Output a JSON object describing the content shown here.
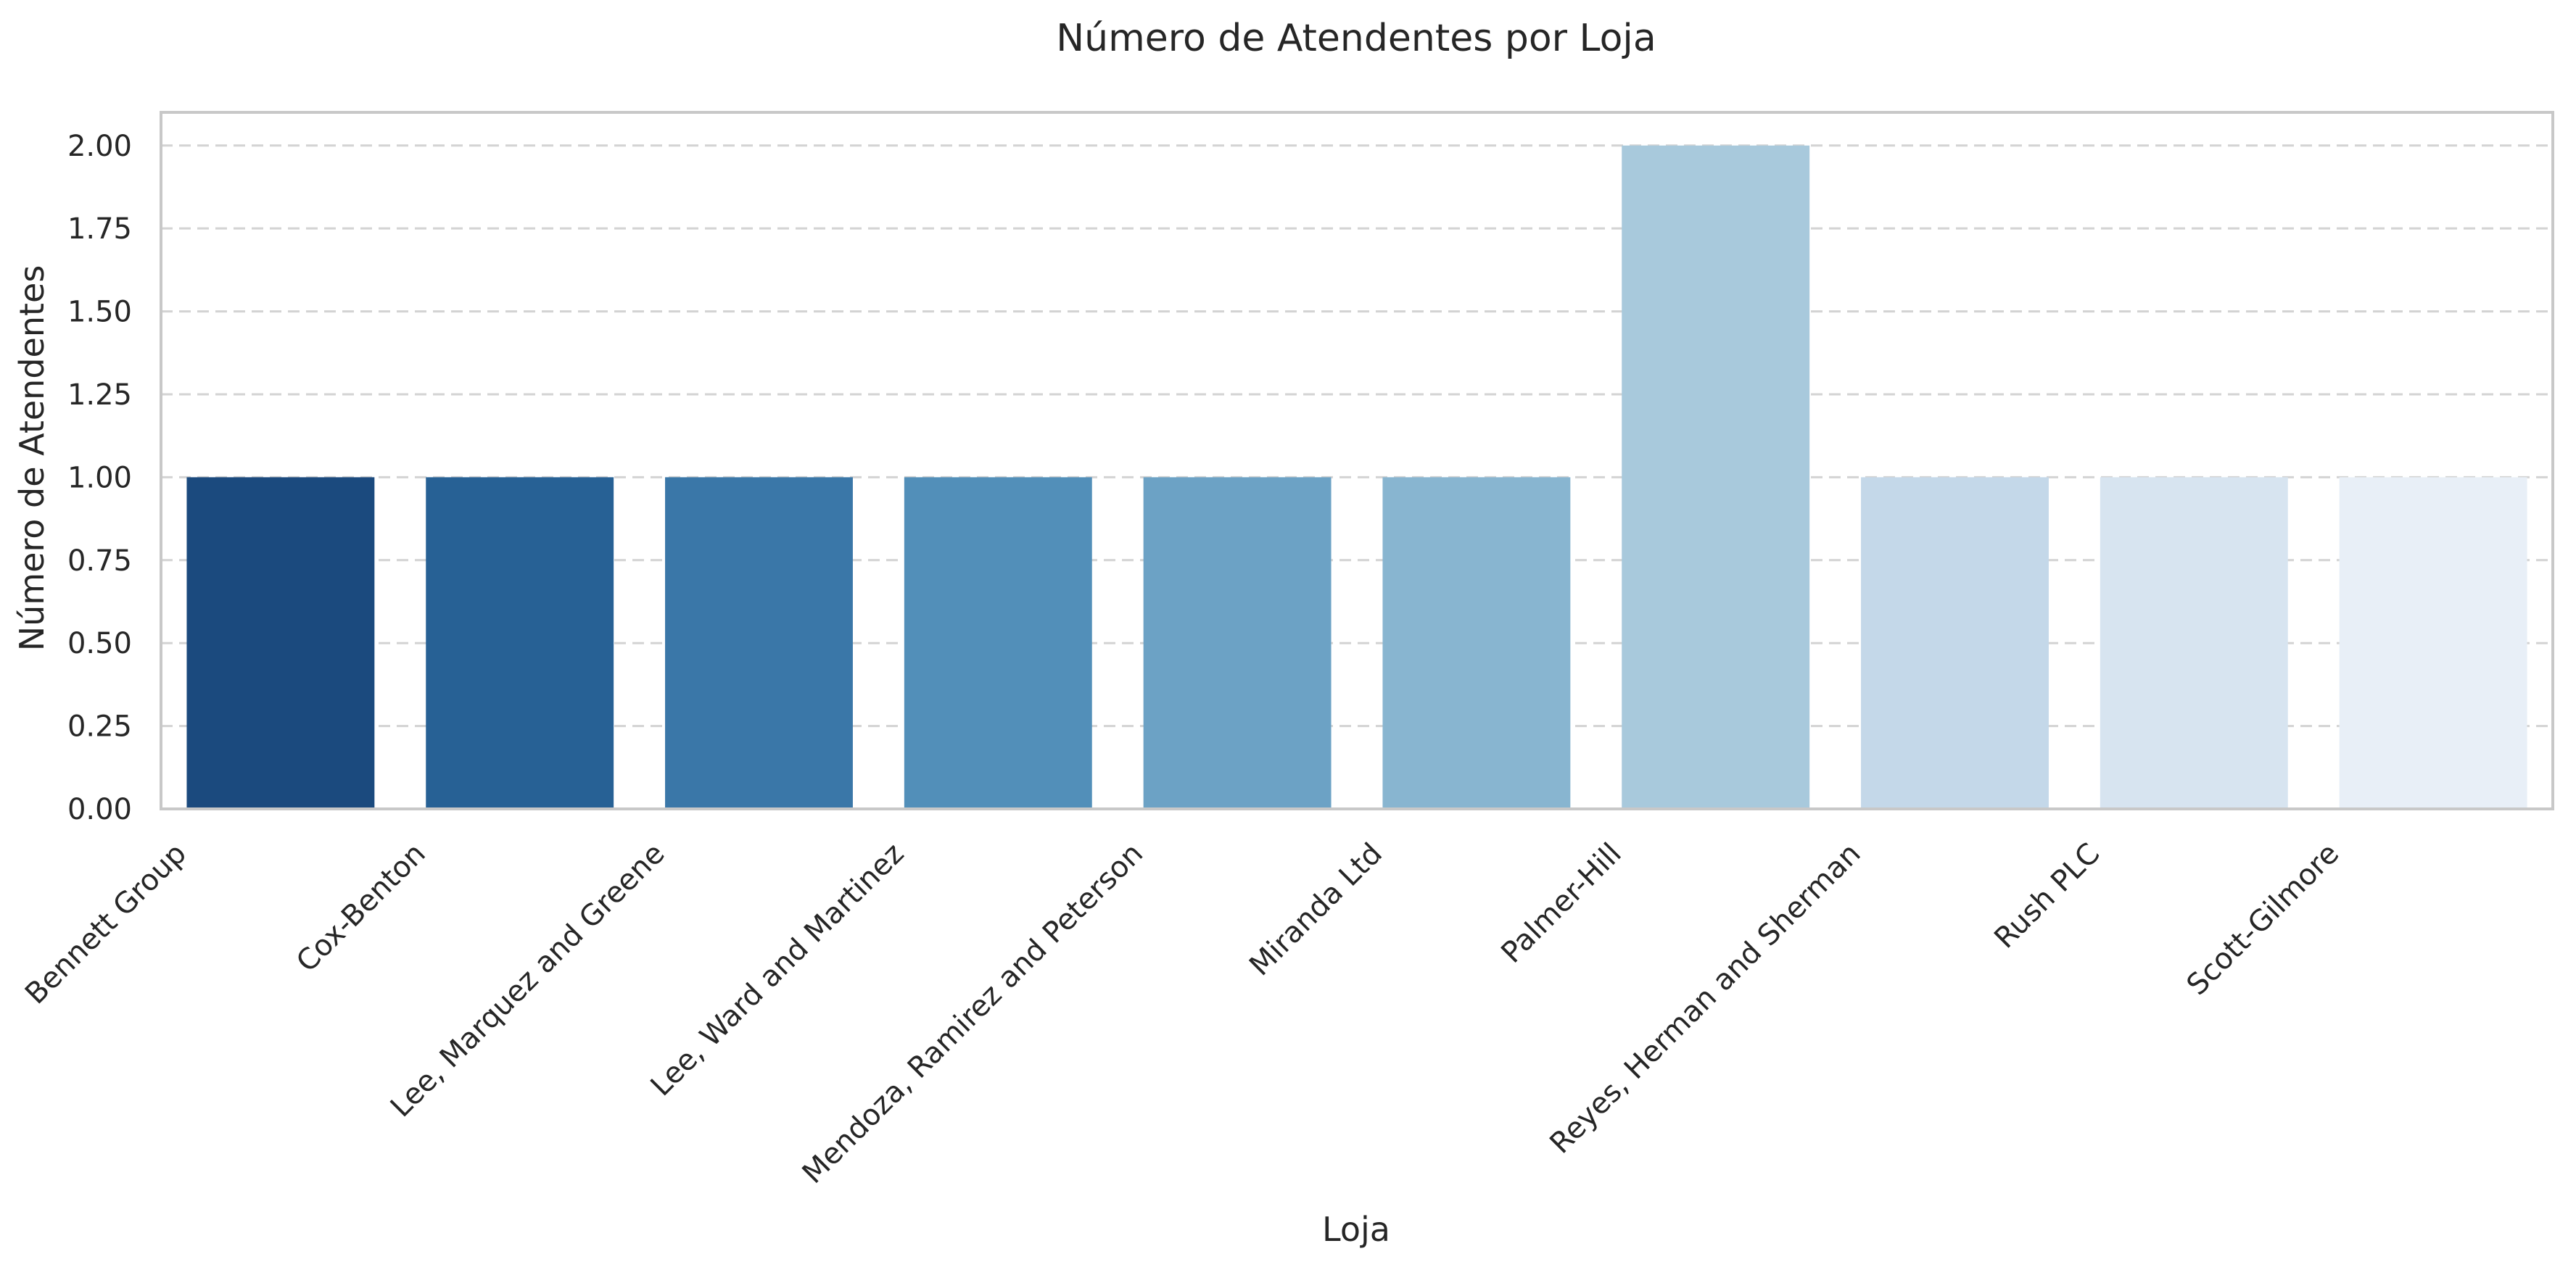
{
  "chart_data": {
    "type": "bar",
    "title": "Número de Atendentes por Loja",
    "xlabel": "Loja",
    "ylabel": "Número de Atendentes",
    "categories": [
      "Bennett Group",
      "Cox-Benton",
      "Lee, Marquez and Greene",
      "Lee, Ward and Martinez",
      "Mendoza, Ramirez and Peterson",
      "Miranda Ltd",
      "Palmer-Hill",
      "Reyes, Herman and Sherman",
      "Rush PLC",
      "Scott-Gilmore"
    ],
    "values": [
      1,
      1,
      1,
      1,
      1,
      1,
      2,
      1,
      1,
      1
    ],
    "colors": [
      "#1b4a7e",
      "#276195",
      "#3a77a8",
      "#528fb9",
      "#6ca2c5",
      "#88b5d0",
      "#a8c9dc",
      "#c4d8e9",
      "#d7e4f0",
      "#e8eff7"
    ],
    "ylim": [
      0,
      2.1
    ],
    "yticks": [
      "0.00",
      "0.25",
      "0.50",
      "0.75",
      "1.00",
      "1.25",
      "1.50",
      "1.75",
      "2.00"
    ],
    "grid": true,
    "grid_axis": "y",
    "grid_style": "dashed",
    "legend": false
  }
}
